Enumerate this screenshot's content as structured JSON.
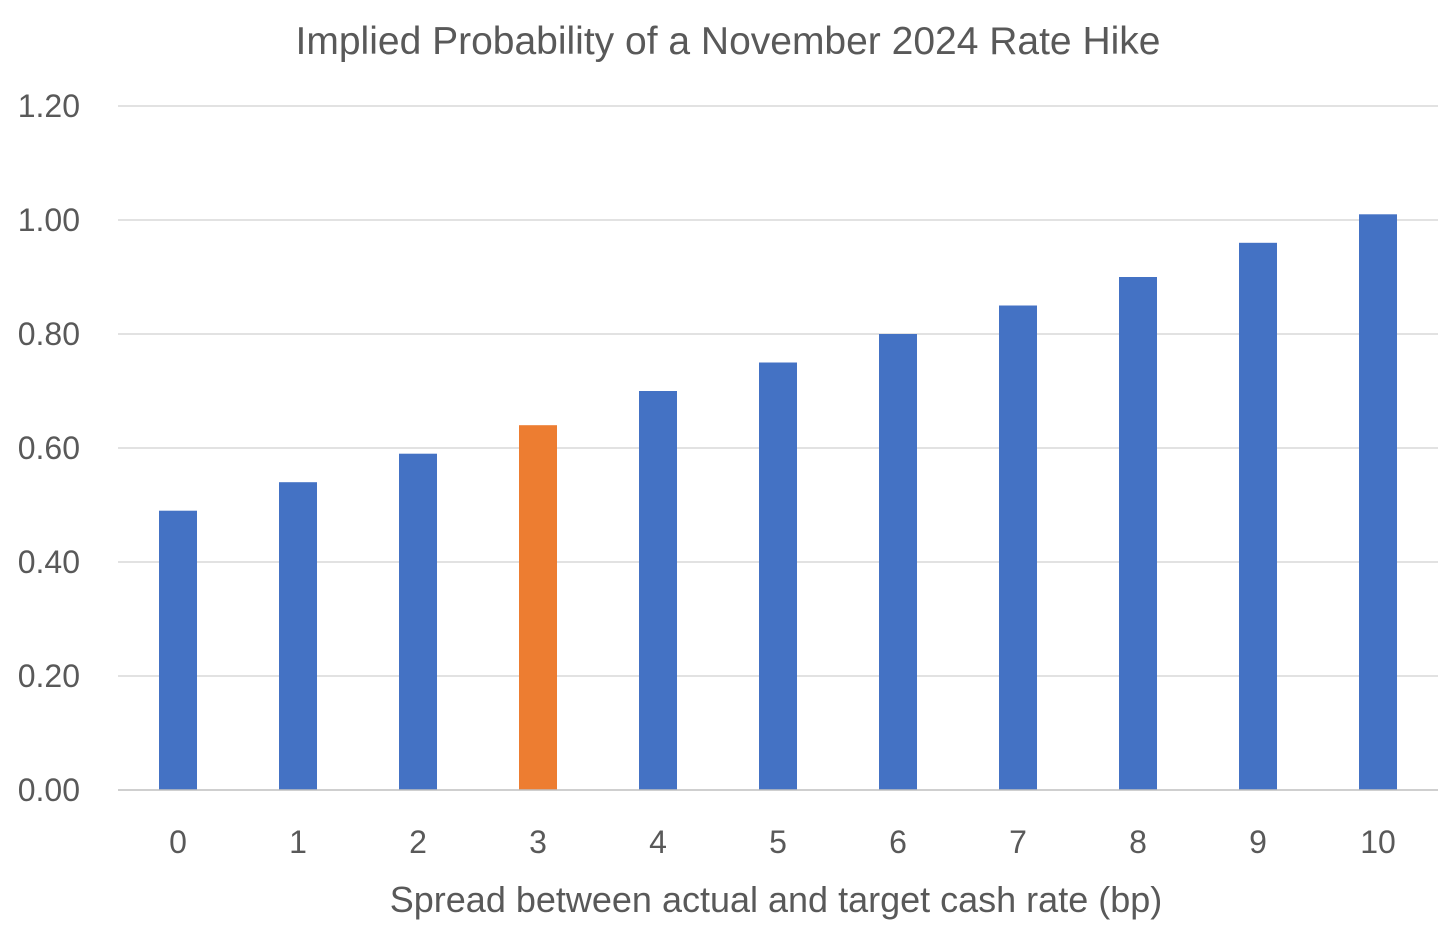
{
  "chart_data": {
    "type": "bar",
    "title": "Implied Probability of a November 2024 Rate Hike",
    "xlabel": "Spread between actual and target cash rate (bp)",
    "ylabel": "",
    "categories": [
      "0",
      "1",
      "2",
      "3",
      "4",
      "5",
      "6",
      "7",
      "8",
      "9",
      "10"
    ],
    "values": [
      0.49,
      0.54,
      0.59,
      0.64,
      0.7,
      0.75,
      0.8,
      0.85,
      0.9,
      0.96,
      1.01
    ],
    "ylim": [
      0,
      1.2
    ],
    "yticks": [
      "0.00",
      "0.20",
      "0.40",
      "0.60",
      "0.80",
      "1.00",
      "1.20"
    ],
    "ytick_values": [
      0,
      0.2,
      0.4,
      0.6,
      0.8,
      1.0,
      1.2
    ],
    "grid": true,
    "legend": "none",
    "highlight_index": 3,
    "colors": {
      "bar": "#4472c4",
      "highlight": "#ed7d31"
    }
  }
}
